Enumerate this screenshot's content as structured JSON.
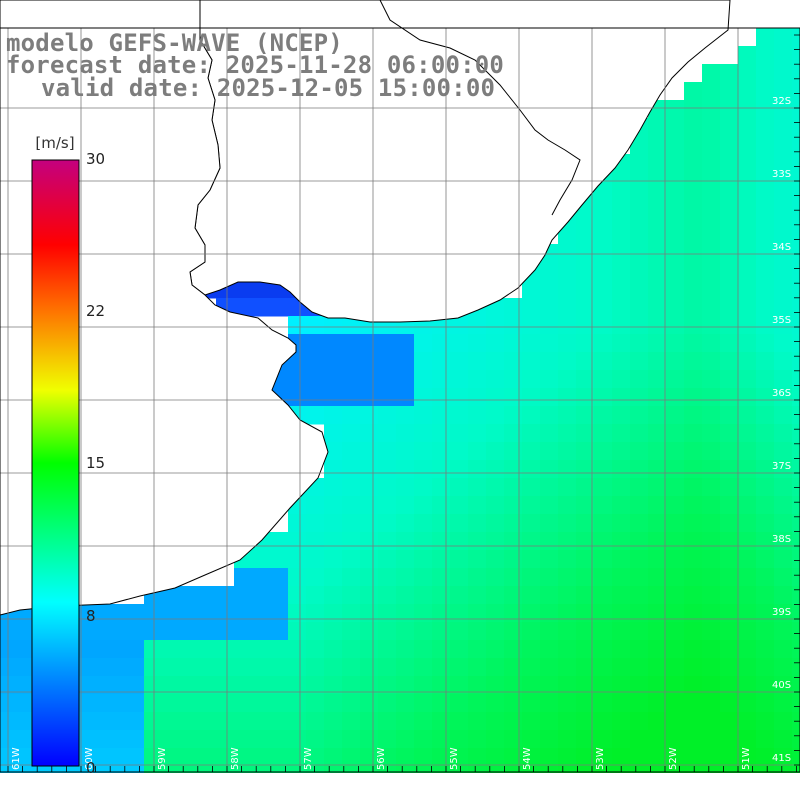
{
  "title": {
    "line1": "modelo GEFS-WAVE (NCEP)",
    "line2": "forecast date: 2025-11-28 06:00:00",
    "line3": "valid date: 2025-12-05 15:00:00"
  },
  "colorbar": {
    "unit": "[m/s]",
    "ticks": [
      "30",
      "22",
      "15",
      "8",
      "0"
    ],
    "tick_values": [
      30,
      22,
      15,
      8,
      0
    ],
    "colors": [
      "#0000ff",
      "#0078ff",
      "#00ffff",
      "#00ff00",
      "#ffff00",
      "#ff7800",
      "#ff0000",
      "#c0007f"
    ]
  },
  "map": {
    "lat_labels": [
      "32S",
      "33S",
      "34S",
      "35S",
      "36S",
      "37S",
      "38S",
      "39S",
      "40S",
      "41S"
    ],
    "lon_labels": [
      "61W",
      "60W",
      "59W",
      "58W",
      "57W",
      "56W",
      "55W",
      "54W",
      "53W",
      "52W",
      "51W"
    ],
    "land_color": "#ffffff",
    "coast_color": "#000000",
    "grid_color": "#7a7a7a",
    "arrow_color": "#ffffff"
  }
}
